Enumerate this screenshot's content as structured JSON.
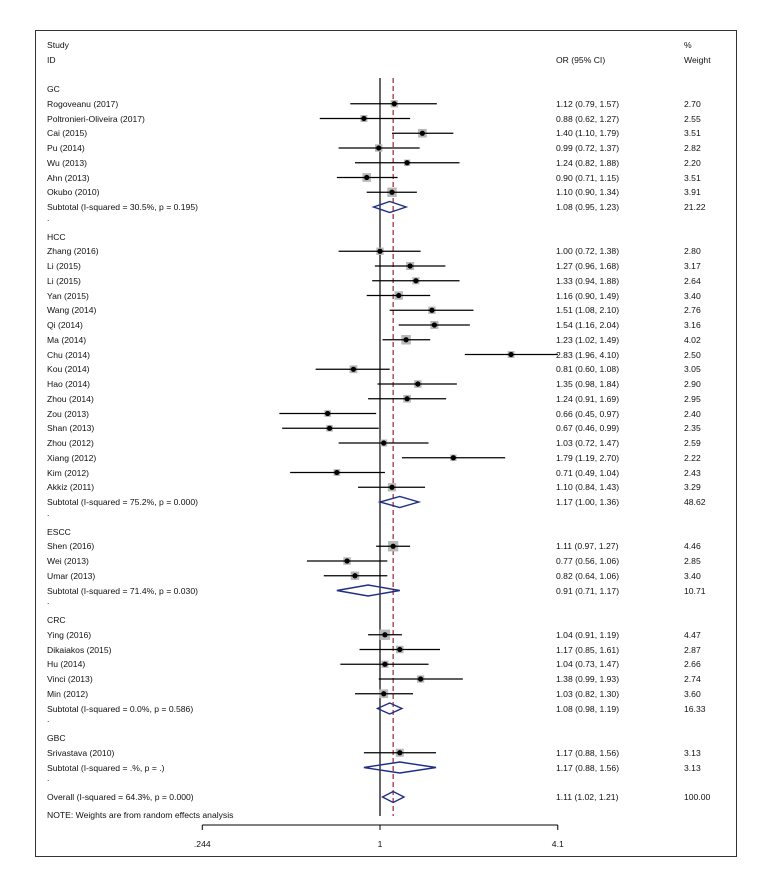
{
  "header": {
    "study": "Study",
    "id": "ID",
    "or_ci": "OR (95% CI)",
    "percent": "%",
    "weight": "Weight"
  },
  "footnote": "NOTE: Weights are from random effects analysis",
  "colors": {
    "line": "#000000",
    "box": "#b8b8b8",
    "diamond": "#1f2f87",
    "dashed": "#a0202a"
  },
  "chart_data": {
    "type": "forest",
    "title": "",
    "xscale": "log",
    "xlim": [
      0.244,
      4.1
    ],
    "ticks": [
      {
        "value": 0.244,
        "label": ".244"
      },
      {
        "value": 1,
        "label": "1"
      },
      {
        "value": 4.1,
        "label": "4.1"
      }
    ],
    "null_line": 1,
    "overall_line": 1.11,
    "rows": [
      {
        "kind": "group",
        "label": "GC"
      },
      {
        "kind": "study",
        "label": "Rogoveanu (2017)",
        "or": 1.12,
        "lo": 0.79,
        "hi": 1.57,
        "ci": "1.12 (0.79, 1.57)",
        "weight": "2.70",
        "w": 2.7
      },
      {
        "kind": "study",
        "label": "Poltronieri-Oliveira (2017)",
        "or": 0.88,
        "lo": 0.62,
        "hi": 1.27,
        "ci": "0.88 (0.62, 1.27)",
        "weight": "2.55",
        "w": 2.55
      },
      {
        "kind": "study",
        "label": "Cai (2015)",
        "or": 1.4,
        "lo": 1.1,
        "hi": 1.79,
        "ci": "1.40 (1.10, 1.79)",
        "weight": "3.51",
        "w": 3.51
      },
      {
        "kind": "study",
        "label": "Pu (2014)",
        "or": 0.99,
        "lo": 0.72,
        "hi": 1.37,
        "ci": "0.99 (0.72, 1.37)",
        "weight": "2.82",
        "w": 2.82
      },
      {
        "kind": "study",
        "label": "Wu (2013)",
        "or": 1.24,
        "lo": 0.82,
        "hi": 1.88,
        "ci": "1.24 (0.82, 1.88)",
        "weight": "2.20",
        "w": 2.2
      },
      {
        "kind": "study",
        "label": "Ahn (2013)",
        "or": 0.9,
        "lo": 0.71,
        "hi": 1.15,
        "ci": "0.90 (0.71, 1.15)",
        "weight": "3.51",
        "w": 3.51
      },
      {
        "kind": "study",
        "label": "Okubo (2010)",
        "or": 1.1,
        "lo": 0.9,
        "hi": 1.34,
        "ci": "1.10 (0.90, 1.34)",
        "weight": "3.91",
        "w": 3.91
      },
      {
        "kind": "subtotal",
        "label": "Subtotal  (I-squared = 30.5%, p = 0.195)",
        "or": 1.08,
        "lo": 0.95,
        "hi": 1.23,
        "ci": "1.08 (0.95, 1.23)",
        "weight": "21.22"
      },
      {
        "kind": "dot",
        "label": "."
      },
      {
        "kind": "group",
        "label": "HCC"
      },
      {
        "kind": "study",
        "label": "Zhang (2016)",
        "or": 1.0,
        "lo": 0.72,
        "hi": 1.38,
        "ci": "1.00 (0.72, 1.38)",
        "weight": "2.80",
        "w": 2.8
      },
      {
        "kind": "study",
        "label": "Li  (2015)",
        "or": 1.27,
        "lo": 0.96,
        "hi": 1.68,
        "ci": "1.27 (0.96, 1.68)",
        "weight": "3.17",
        "w": 3.17
      },
      {
        "kind": "study",
        "label": "Li (2015)",
        "or": 1.33,
        "lo": 0.94,
        "hi": 1.88,
        "ci": "1.33 (0.94, 1.88)",
        "weight": "2.64",
        "w": 2.64
      },
      {
        "kind": "study",
        "label": "Yan (2015)",
        "or": 1.16,
        "lo": 0.9,
        "hi": 1.49,
        "ci": "1.16 (0.90, 1.49)",
        "weight": "3.40",
        "w": 3.4
      },
      {
        "kind": "study",
        "label": "Wang (2014)",
        "or": 1.51,
        "lo": 1.08,
        "hi": 2.1,
        "ci": "1.51 (1.08, 2.10)",
        "weight": "2.76",
        "w": 2.76
      },
      {
        "kind": "study",
        "label": "Qi (2014)",
        "or": 1.54,
        "lo": 1.16,
        "hi": 2.04,
        "ci": "1.54 (1.16, 2.04)",
        "weight": "3.16",
        "w": 3.16
      },
      {
        "kind": "study",
        "label": "Ma (2014)",
        "or": 1.23,
        "lo": 1.02,
        "hi": 1.49,
        "ci": "1.23 (1.02, 1.49)",
        "weight": "4.02",
        "w": 4.02
      },
      {
        "kind": "study",
        "label": "Chu (2014)",
        "or": 2.83,
        "lo": 1.96,
        "hi": 4.1,
        "ci": "2.83 (1.96, 4.10)",
        "weight": "2.50",
        "w": 2.5
      },
      {
        "kind": "study",
        "label": "Kou (2014)",
        "or": 0.81,
        "lo": 0.6,
        "hi": 1.08,
        "ci": "0.81 (0.60, 1.08)",
        "weight": "3.05",
        "w": 3.05
      },
      {
        "kind": "study",
        "label": "Hao (2014)",
        "or": 1.35,
        "lo": 0.98,
        "hi": 1.84,
        "ci": "1.35 (0.98, 1.84)",
        "weight": "2.90",
        "w": 2.9
      },
      {
        "kind": "study",
        "label": "Zhou (2014)",
        "or": 1.24,
        "lo": 0.91,
        "hi": 1.69,
        "ci": "1.24 (0.91, 1.69)",
        "weight": "2.95",
        "w": 2.95
      },
      {
        "kind": "study",
        "label": "Zou (2013)",
        "or": 0.66,
        "lo": 0.45,
        "hi": 0.97,
        "ci": "0.66 (0.45, 0.97)",
        "weight": "2.40",
        "w": 2.4
      },
      {
        "kind": "study",
        "label": "Shan (2013)",
        "or": 0.67,
        "lo": 0.46,
        "hi": 0.99,
        "ci": "0.67 (0.46, 0.99)",
        "weight": "2.35",
        "w": 2.35
      },
      {
        "kind": "study",
        "label": "Zhou (2012)",
        "or": 1.03,
        "lo": 0.72,
        "hi": 1.47,
        "ci": "1.03 (0.72, 1.47)",
        "weight": "2.59",
        "w": 2.59
      },
      {
        "kind": "study",
        "label": "Xiang (2012)",
        "or": 1.79,
        "lo": 1.19,
        "hi": 2.7,
        "ci": "1.79 (1.19, 2.70)",
        "weight": "2.22",
        "w": 2.22
      },
      {
        "kind": "study",
        "label": "Kim (2012)",
        "or": 0.71,
        "lo": 0.49,
        "hi": 1.04,
        "ci": "0.71 (0.49, 1.04)",
        "weight": "2.43",
        "w": 2.43
      },
      {
        "kind": "study",
        "label": "Akkiz (2011)",
        "or": 1.1,
        "lo": 0.84,
        "hi": 1.43,
        "ci": "1.10 (0.84, 1.43)",
        "weight": "3.29",
        "w": 3.29
      },
      {
        "kind": "subtotal",
        "label": "Subtotal  (I-squared = 75.2%, p = 0.000)",
        "or": 1.17,
        "lo": 1.0,
        "hi": 1.36,
        "ci": "1.17 (1.00, 1.36)",
        "weight": "48.62"
      },
      {
        "kind": "dot",
        "label": "."
      },
      {
        "kind": "group",
        "label": "ESCC"
      },
      {
        "kind": "study",
        "label": "Shen (2016)",
        "or": 1.11,
        "lo": 0.97,
        "hi": 1.27,
        "ci": "1.11 (0.97, 1.27)",
        "weight": "4.46",
        "w": 4.46
      },
      {
        "kind": "study",
        "label": "Wei (2013)",
        "or": 0.77,
        "lo": 0.56,
        "hi": 1.06,
        "ci": "0.77 (0.56, 1.06)",
        "weight": "2.85",
        "w": 2.85
      },
      {
        "kind": "study",
        "label": "Umar (2013)",
        "or": 0.82,
        "lo": 0.64,
        "hi": 1.06,
        "ci": "0.82 (0.64, 1.06)",
        "weight": "3.40",
        "w": 3.4
      },
      {
        "kind": "subtotal",
        "label": "Subtotal  (I-squared = 71.4%, p = 0.030)",
        "or": 0.91,
        "lo": 0.71,
        "hi": 1.17,
        "ci": "0.91 (0.71, 1.17)",
        "weight": "10.71"
      },
      {
        "kind": "dot",
        "label": "."
      },
      {
        "kind": "group",
        "label": "CRC"
      },
      {
        "kind": "study",
        "label": "Ying (2016)",
        "or": 1.04,
        "lo": 0.91,
        "hi": 1.19,
        "ci": "1.04 (0.91, 1.19)",
        "weight": "4.47",
        "w": 4.47
      },
      {
        "kind": "study",
        "label": "Dikaiakos (2015)",
        "or": 1.17,
        "lo": 0.85,
        "hi": 1.61,
        "ci": "1.17 (0.85, 1.61)",
        "weight": "2.87",
        "w": 2.87
      },
      {
        "kind": "study",
        "label": "Hu (2014)",
        "or": 1.04,
        "lo": 0.73,
        "hi": 1.47,
        "ci": "1.04 (0.73, 1.47)",
        "weight": "2.66",
        "w": 2.66
      },
      {
        "kind": "study",
        "label": "Vinci (2013)",
        "or": 1.38,
        "lo": 0.99,
        "hi": 1.93,
        "ci": "1.38 (0.99, 1.93)",
        "weight": "2.74",
        "w": 2.74
      },
      {
        "kind": "study",
        "label": "Min (2012)",
        "or": 1.03,
        "lo": 0.82,
        "hi": 1.3,
        "ci": "1.03 (0.82, 1.30)",
        "weight": "3.60",
        "w": 3.6
      },
      {
        "kind": "subtotal",
        "label": "Subtotal  (I-squared = 0.0%, p = 0.586)",
        "or": 1.08,
        "lo": 0.98,
        "hi": 1.19,
        "ci": "1.08 (0.98, 1.19)",
        "weight": "16.33"
      },
      {
        "kind": "dot",
        "label": "."
      },
      {
        "kind": "group",
        "label": "GBC"
      },
      {
        "kind": "study",
        "label": "Srivastava (2010)",
        "or": 1.17,
        "lo": 0.88,
        "hi": 1.56,
        "ci": "1.17 (0.88, 1.56)",
        "weight": "3.13",
        "w": 3.13
      },
      {
        "kind": "subtotal",
        "label": "Subtotal  (I-squared = .%, p = .)",
        "or": 1.17,
        "lo": 0.88,
        "hi": 1.56,
        "ci": "1.17 (0.88, 1.56)",
        "weight": "3.13"
      },
      {
        "kind": "dot",
        "label": "."
      },
      {
        "kind": "overall",
        "label": "Overall  (I-squared = 64.3%, p = 0.000)",
        "or": 1.11,
        "lo": 1.02,
        "hi": 1.21,
        "ci": "1.11 (1.02, 1.21)",
        "weight": "100.00"
      }
    ]
  }
}
